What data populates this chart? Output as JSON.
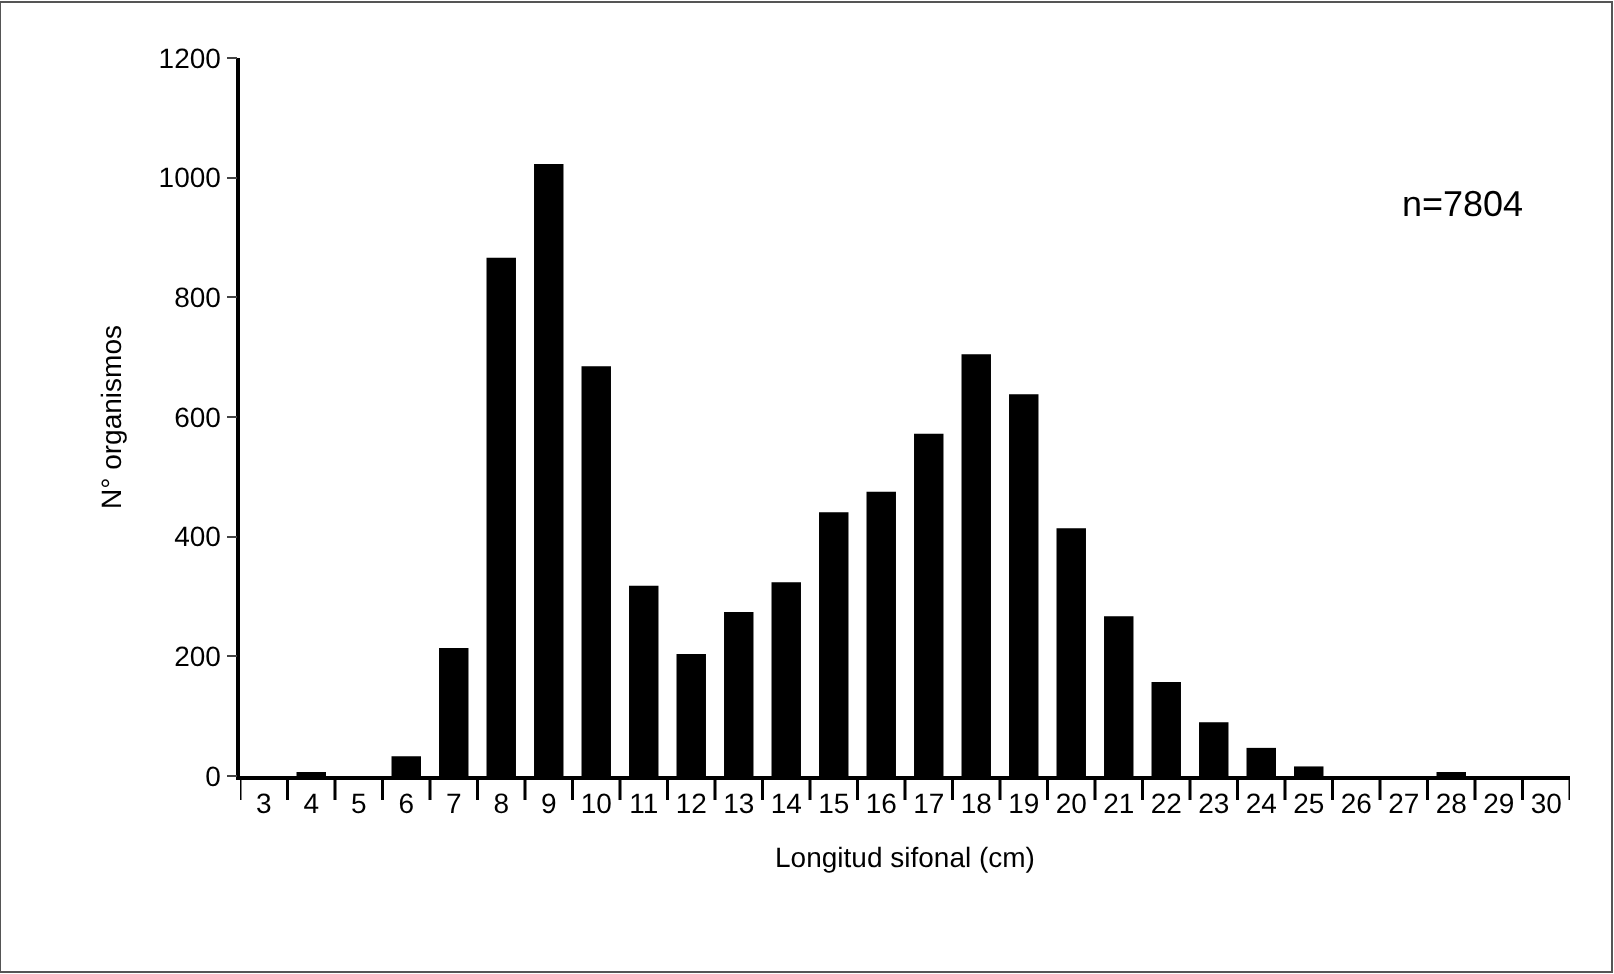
{
  "chart_data": {
    "type": "bar",
    "categories": [
      "3",
      "4",
      "5",
      "6",
      "7",
      "8",
      "9",
      "10",
      "11",
      "12",
      "13",
      "14",
      "15",
      "16",
      "17",
      "18",
      "19",
      "20",
      "21",
      "22",
      "23",
      "24",
      "25",
      "26",
      "27",
      "28",
      "29",
      "30"
    ],
    "values": [
      0,
      5,
      0,
      33,
      214,
      866,
      1023,
      685,
      318,
      204,
      274,
      324,
      441,
      475,
      572,
      705,
      638,
      414,
      267,
      157,
      90,
      47,
      16,
      0,
      0,
      5,
      0,
      0
    ],
    "color": "#000000",
    "xlabel": "Longitud sifonal (cm)",
    "ylabel": "N° organismos",
    "ylim": [
      0,
      1200
    ],
    "yticks": [
      0,
      200,
      400,
      600,
      800,
      1000,
      1200
    ],
    "annotations": [
      "n=7804"
    ]
  }
}
